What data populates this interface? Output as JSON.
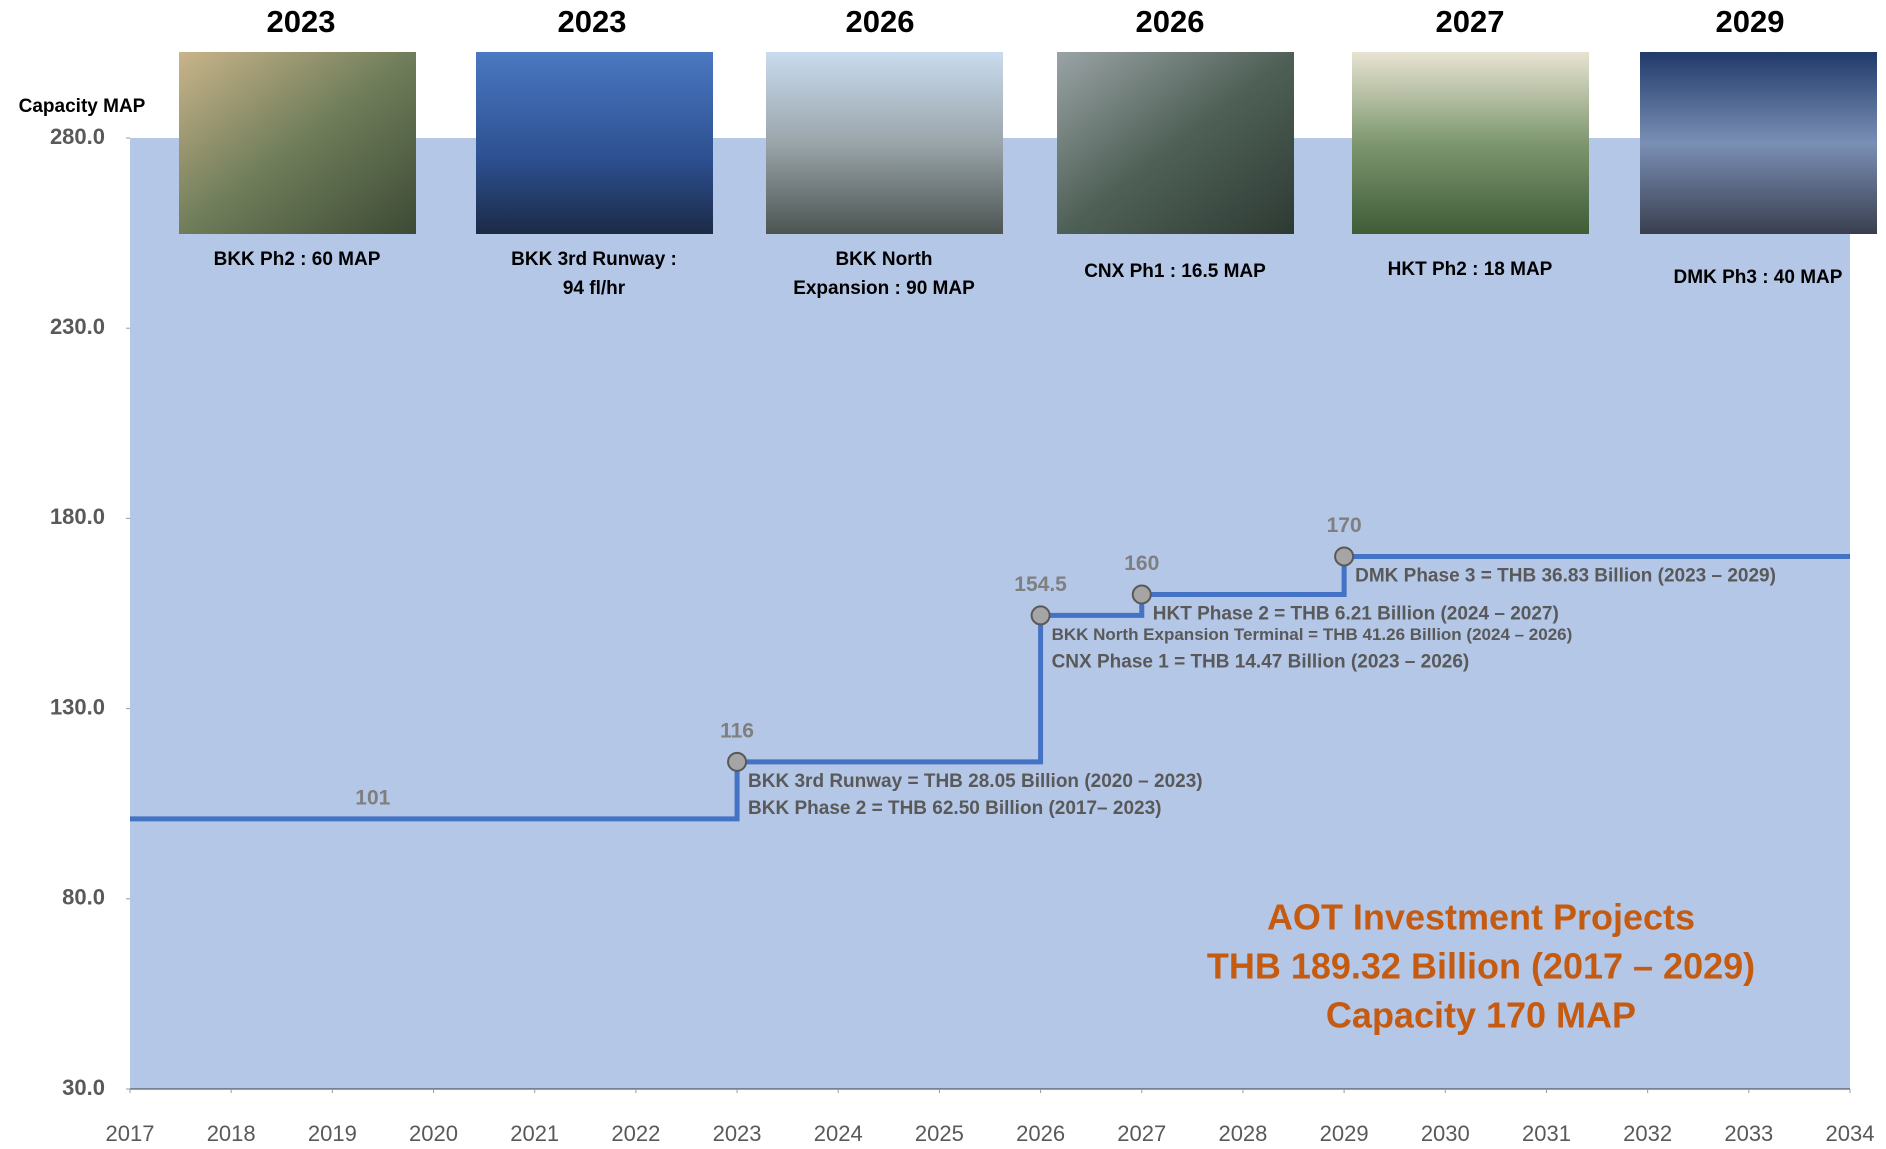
{
  "chart_data": {
    "type": "step",
    "y_axis_label": "Capacity MAP",
    "x": [
      2017,
      2023,
      2026,
      2027,
      2029
    ],
    "series": [
      {
        "color": "#4472c4",
        "values": [
          101,
          116,
          154.5,
          160,
          170
        ]
      }
    ],
    "xlim": [
      2017,
      2034
    ],
    "xticks": [
      2017,
      2018,
      2019,
      2020,
      2021,
      2022,
      2023,
      2024,
      2025,
      2026,
      2027,
      2028,
      2029,
      2030,
      2031,
      2032,
      2033,
      2034
    ],
    "ylim": [
      30,
      280
    ],
    "yticks": [
      {
        "value": 30,
        "label": "30.0"
      },
      {
        "value": 80,
        "label": "80.0"
      },
      {
        "value": 130,
        "label": "130.0"
      },
      {
        "value": 180,
        "label": "180.0"
      },
      {
        "value": 230,
        "label": "230.0"
      },
      {
        "value": 280,
        "label": "280.0"
      }
    ],
    "area_color": "#b4c7e7",
    "grid": false,
    "annotations": [
      [],
      [
        "BKK 3rd Runway = THB  28.05 Billion (2020 – 2023)",
        "BKK Phase 2 = THB 62.50 Billion (2017– 2023)"
      ],
      [
        "BKK North Expansion Terminal = THB 41.26 Billion (2024 – 2026)",
        "CNX Phase 1 = THB 14.47 Billion (2023 – 2026)"
      ],
      [
        "HKT Phase 2 = THB 6.21 Billion (2024 – 2027)"
      ],
      [
        "DMK Phase 3 = THB 36.83 Billion (2023 – 2029)"
      ]
    ],
    "projects": [
      {
        "year": "2023",
        "caption": [
          "BKK Ph2 : 60 MAP"
        ]
      },
      {
        "year": "2023",
        "caption": [
          "BKK 3rd Runway :",
          "94 fl/hr"
        ]
      },
      {
        "year": "2026",
        "caption": [
          "BKK North",
          "Expansion : 90 MAP"
        ]
      },
      {
        "year": "2026",
        "caption": [
          "CNX Ph1 : 16.5 MAP"
        ]
      },
      {
        "year": "2027",
        "caption": [
          "HKT Ph2 : 18 MAP"
        ]
      },
      {
        "year": "2029",
        "caption": [
          "DMK Ph3 : 40 MAP"
        ]
      }
    ],
    "summary": [
      "AOT Investment Projects",
      "THB 189.32 Billion (2017 – 2029)",
      "Capacity 170 MAP"
    ]
  }
}
